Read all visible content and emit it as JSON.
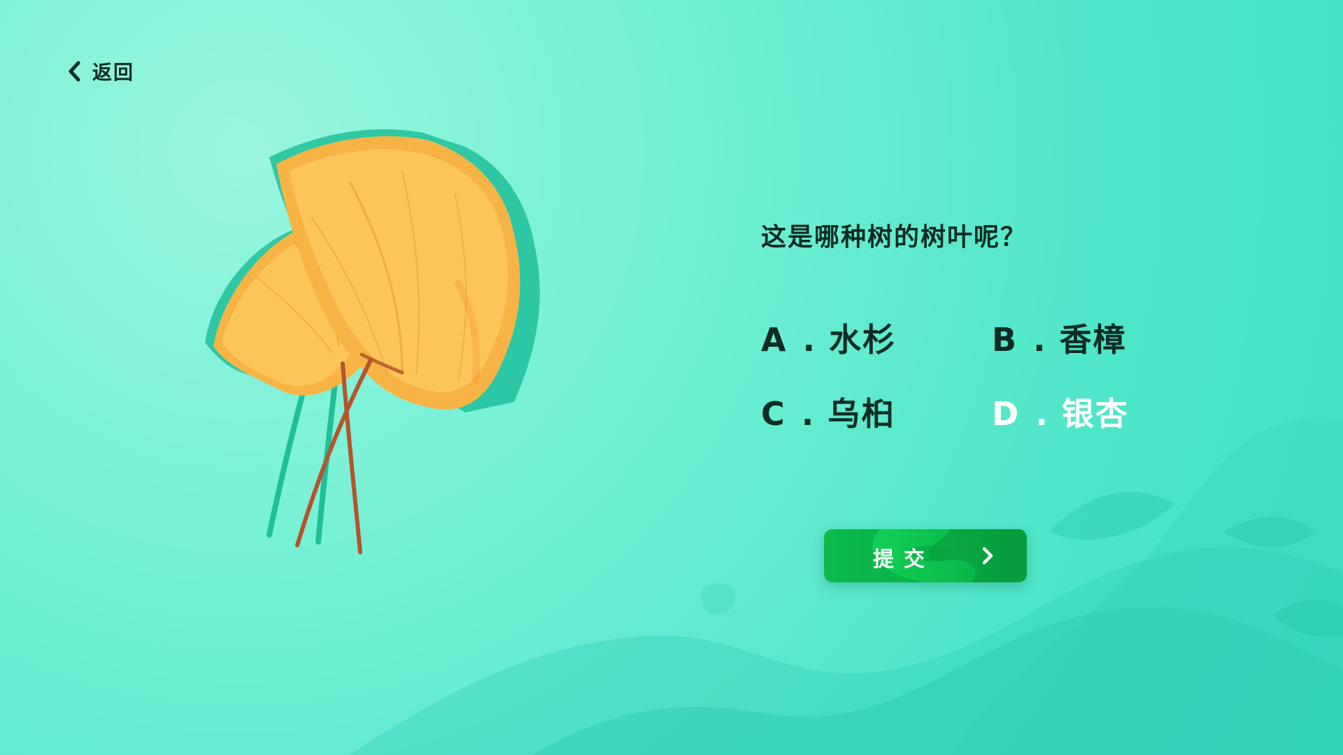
{
  "nav": {
    "back_label": "返回",
    "back_icon": "chevron-left-icon"
  },
  "illustration": {
    "subject": "ginkgo-leaf-icon",
    "colors": {
      "leaf": "#f7b445",
      "leaf_light": "#ffd36b",
      "leaf_dark": "#f07c2a",
      "stem": "#b5542b",
      "shadow": "#1fbf9b"
    }
  },
  "quiz": {
    "question": "这是哪种树的树叶呢？",
    "options": [
      {
        "letter": "A",
        "sep": ".",
        "text": "水杉",
        "selected": false
      },
      {
        "letter": "B",
        "sep": ".",
        "text": "香樟",
        "selected": false
      },
      {
        "letter": "C",
        "sep": ".",
        "text": "乌桕",
        "selected": false
      },
      {
        "letter": "D",
        "sep": ".",
        "text": "银杏",
        "selected": true
      }
    ]
  },
  "submit": {
    "label": "提交",
    "icon": "chevron-right-icon",
    "color": "#12cc52"
  },
  "theme": {
    "background": "#5ce9cf",
    "text": "#0e2c25",
    "selected_text": "#ffffff"
  }
}
